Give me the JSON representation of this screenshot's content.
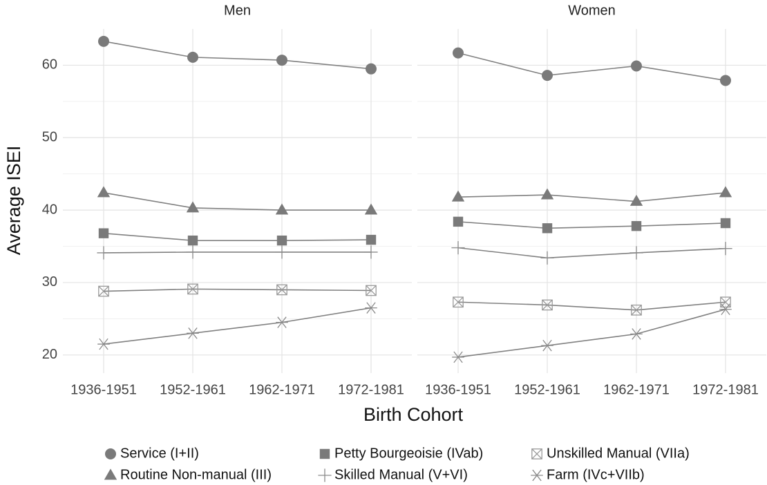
{
  "chart_data": {
    "type": "line",
    "facets": [
      "Men",
      "Women"
    ],
    "xlabel": "Birth Cohort",
    "ylabel": "Average ISEI",
    "categories": [
      "1936-1951",
      "1952-1961",
      "1962-1971",
      "1972-1981"
    ],
    "ylim": [
      17.5,
      65
    ],
    "yticks": [
      20,
      30,
      40,
      50,
      60
    ],
    "grid": true,
    "legend": "bottom",
    "series": [
      {
        "name": "Service (I+II)",
        "marker": "circle",
        "color": "#7a7a7a",
        "values": [
          [
            63.3,
            61.1,
            60.7,
            59.5
          ],
          [
            61.7,
            58.6,
            59.9,
            57.9
          ]
        ]
      },
      {
        "name": "Routine Non-manual (III)",
        "marker": "triangle",
        "color": "#7a7a7a",
        "values": [
          [
            42.4,
            40.3,
            40.0,
            40.0
          ],
          [
            41.8,
            42.1,
            41.2,
            42.4
          ]
        ]
      },
      {
        "name": "Petty Bourgeoisie (IVab)",
        "marker": "square",
        "color": "#7a7a7a",
        "values": [
          [
            36.8,
            35.8,
            35.8,
            35.9
          ],
          [
            38.4,
            37.5,
            37.8,
            38.2
          ]
        ]
      },
      {
        "name": "Skilled Manual (V+VI)",
        "marker": "plus",
        "color": "#8a8a8a",
        "values": [
          [
            34.1,
            34.2,
            34.2,
            34.2
          ],
          [
            34.8,
            33.4,
            34.1,
            34.7
          ]
        ]
      },
      {
        "name": "Unskilled Manual (VIIa)",
        "marker": "boxx",
        "color": "#999999",
        "values": [
          [
            28.8,
            29.1,
            29.0,
            28.9
          ],
          [
            27.3,
            26.9,
            26.2,
            27.3
          ]
        ]
      },
      {
        "name": "Farm (IVc+VIIb)",
        "marker": "asterisk",
        "color": "#8a8a8a",
        "values": [
          [
            21.5,
            23.0,
            24.5,
            26.5
          ],
          [
            19.7,
            21.3,
            22.9,
            26.3
          ]
        ]
      }
    ]
  }
}
